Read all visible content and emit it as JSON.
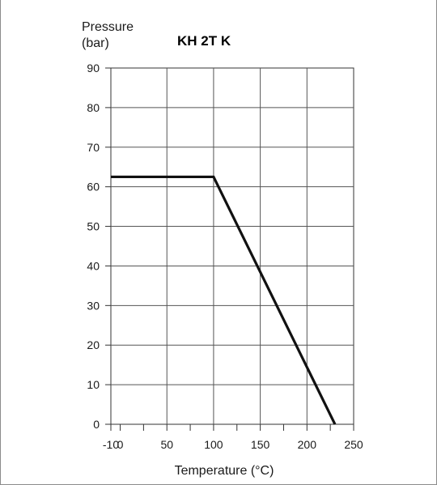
{
  "chart_data": {
    "type": "line",
    "title": "KH 2T K",
    "ylabel_line1": "Pressure",
    "ylabel_line2": "(bar)",
    "xlabel": "Temperature (°C)",
    "x_ticks": [
      "-10",
      "0",
      "50",
      "100",
      "150",
      "200",
      "250"
    ],
    "y_ticks": [
      "0",
      "10",
      "20",
      "30",
      "40",
      "50",
      "60",
      "70",
      "80",
      "90"
    ],
    "xlim": [
      -10,
      250
    ],
    "ylim": [
      0,
      90
    ],
    "grid": true,
    "series": [
      {
        "x": [
          -10,
          100,
          230
        ],
        "y": [
          62.5,
          62.5,
          0
        ],
        "color": "#111111"
      }
    ]
  }
}
